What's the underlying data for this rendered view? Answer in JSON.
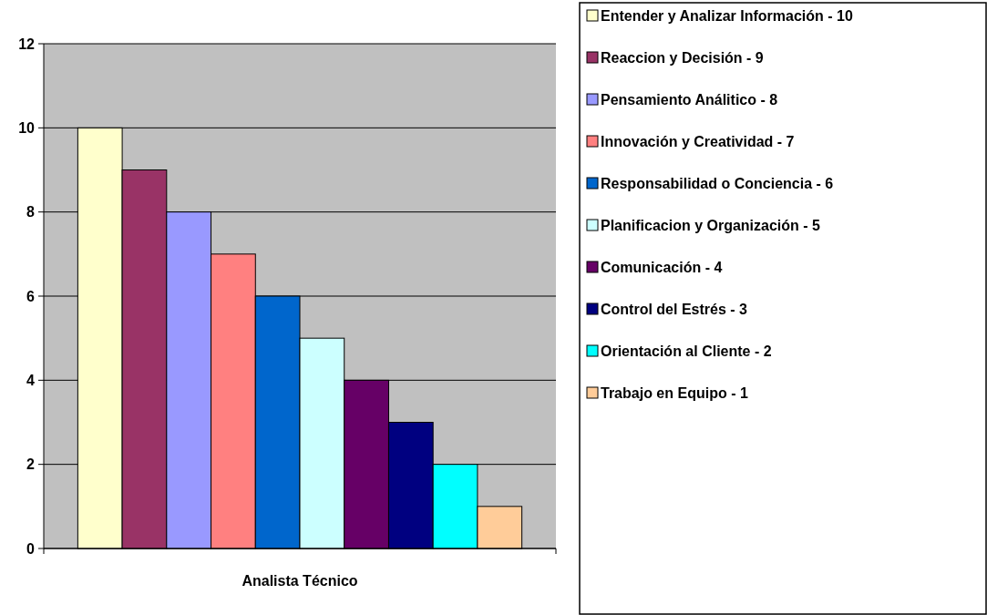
{
  "chart_data": {
    "type": "bar",
    "categories": [
      "Analista Técnico"
    ],
    "ylim": [
      0,
      12
    ],
    "yticks": [
      0,
      2,
      4,
      6,
      8,
      10,
      12
    ],
    "grid": "y",
    "legend": "right",
    "series": [
      {
        "name": "Entender y Analizar Información - 10",
        "color": "#ffffcc",
        "values": [
          10
        ]
      },
      {
        "name": "Reaccion y Decisión - 9",
        "color": "#993366",
        "values": [
          9
        ]
      },
      {
        "name": "Pensamiento Análitico - 8",
        "color": "#9999ff",
        "values": [
          8
        ]
      },
      {
        "name": "Innovación y Creatividad - 7",
        "color": "#ff8080",
        "values": [
          7
        ]
      },
      {
        "name": "Responsabilidad o Conciencia - 6",
        "color": "#0066cc",
        "values": [
          6
        ]
      },
      {
        "name": "Planificacion y Organización - 5",
        "color": "#ccffff",
        "values": [
          5
        ]
      },
      {
        "name": "Comunicación - 4",
        "color": "#660066",
        "values": [
          4
        ]
      },
      {
        "name": "Control del Estrés - 3",
        "color": "#000080",
        "values": [
          3
        ]
      },
      {
        "name": "Orientación al Cliente - 2",
        "color": "#00ffff",
        "values": [
          2
        ]
      },
      {
        "name": "Trabajo en Equipo - 1",
        "color": "#ffcc99",
        "values": [
          1
        ]
      }
    ]
  }
}
